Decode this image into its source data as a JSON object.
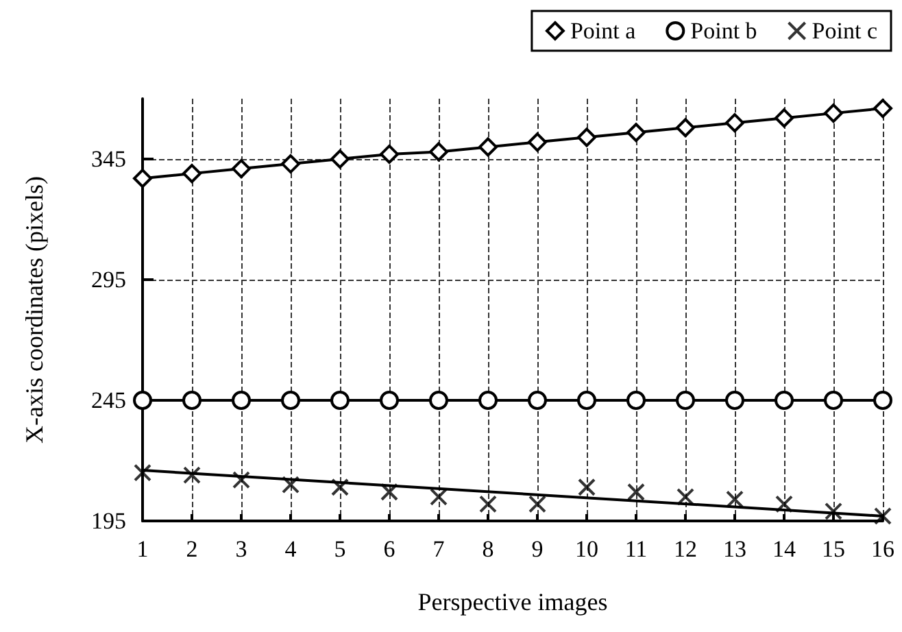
{
  "chart_data": {
    "type": "line",
    "xlabel": "Perspective images",
    "ylabel": "X-axis coordinates (pixels)",
    "x": [
      1,
      2,
      3,
      4,
      5,
      6,
      7,
      8,
      9,
      10,
      11,
      12,
      13,
      14,
      15,
      16
    ],
    "series": [
      {
        "name": "Point a",
        "color": "#000000",
        "marker": "diamond",
        "values": [
          337,
          339,
          341,
          343,
          345,
          347,
          348,
          350,
          352,
          354,
          356,
          358,
          360,
          362,
          364,
          366
        ]
      },
      {
        "name": "Point b",
        "color": "#000000",
        "marker": "circle",
        "values": [
          245,
          245,
          245,
          245,
          245,
          245,
          245,
          245,
          245,
          245,
          245,
          245,
          245,
          245,
          245,
          245
        ]
      },
      {
        "name": "Point c",
        "color": "#000000",
        "type": "scatter",
        "marker": "cross",
        "values": [
          215,
          214,
          212,
          210,
          209,
          207,
          205,
          202,
          202,
          209,
          207,
          205,
          204,
          202,
          199,
          197
        ]
      },
      {
        "type": "line",
        "color": "#000000",
        "marker": "none",
        "x": [
          1,
          16
        ],
        "values": [
          216,
          197
        ]
      }
    ],
    "xlim": [
      1,
      16
    ],
    "xticks": [
      1,
      2,
      3,
      4,
      5,
      6,
      7,
      8,
      9,
      10,
      11,
      12,
      13,
      14,
      15,
      16
    ],
    "ylim": [
      195,
      370
    ],
    "yticks": [
      195,
      245,
      295,
      345
    ],
    "grid": true,
    "legend": "top right",
    "line_style": "solid"
  }
}
